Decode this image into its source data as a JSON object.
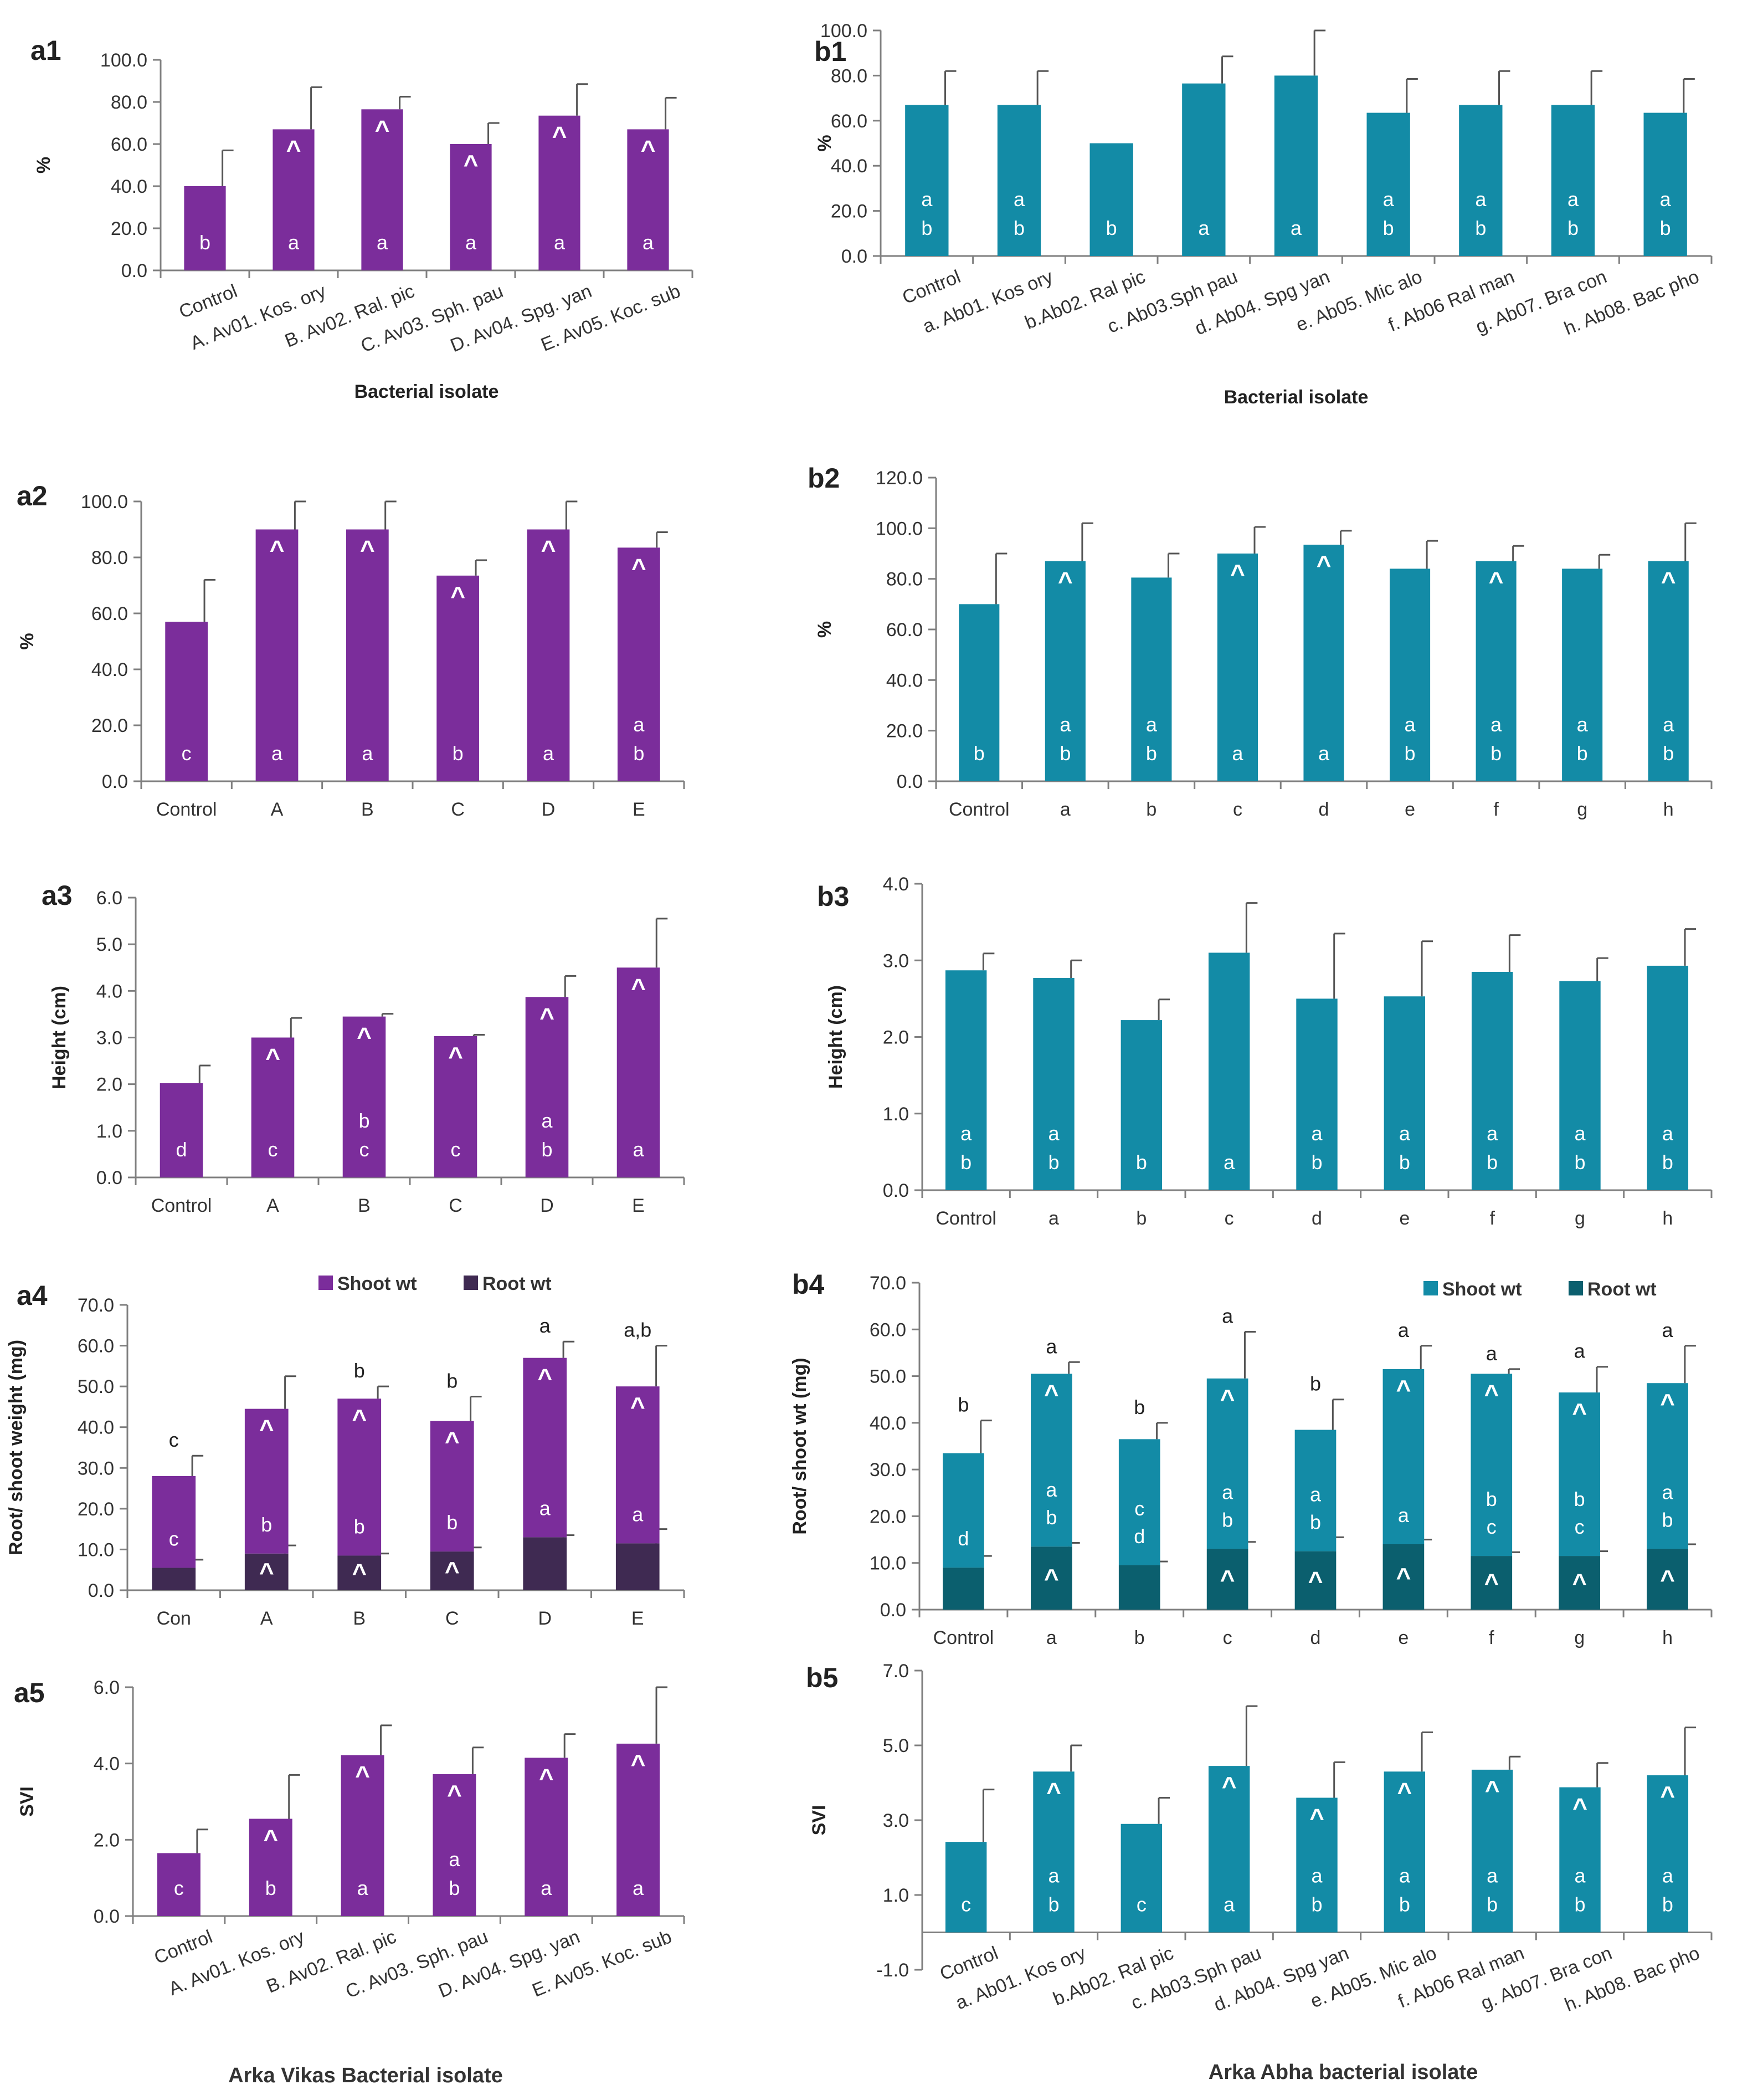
{
  "colors": {
    "purple": "#7b2d9b",
    "teal": "#138ba6",
    "dark_purple": "#3f2a52",
    "dark_teal": "#0b5f6e",
    "axis": "#7f7f7f",
    "text": "#333333"
  },
  "page_labels": {
    "left_bottom": "Arka Vikas Bacterial isolate",
    "right_bottom": "Arka Abha bacterial isolate"
  },
  "chart_data": [
    {
      "id": "a1",
      "type": "bar",
      "panel_label": "a1",
      "ylabel": "%",
      "xlabel": "Bacterial isolate",
      "ylim": [
        0,
        100
      ],
      "yticks": [
        0,
        20,
        40,
        60,
        80,
        100
      ],
      "tick_decimals": 1,
      "categories": [
        "Control",
        "A. Av01. Kos. ory",
        "B. Av02. Ral. pic",
        "C. Av03. Sph. pau",
        "D. Av04. Spg. yan",
        "E. Av05. Koc. sub"
      ],
      "rotate_x": true,
      "series": [
        {
          "name": "",
          "color": "purple",
          "values": [
            40,
            67,
            76.5,
            60,
            73.5,
            67
          ],
          "errors": [
            17,
            20,
            6,
            10,
            15,
            15
          ],
          "caret": [
            false,
            true,
            true,
            true,
            true,
            true
          ],
          "letters": [
            [
              "b"
            ],
            [
              "a"
            ],
            [
              "a"
            ],
            [
              "a"
            ],
            [
              "a"
            ],
            [
              "a"
            ]
          ]
        }
      ]
    },
    {
      "id": "b1",
      "type": "bar",
      "panel_label": "b1",
      "ylabel": "%",
      "xlabel": "Bacterial isolate",
      "ylim": [
        0,
        100
      ],
      "yticks": [
        0,
        20,
        40,
        60,
        80,
        100
      ],
      "tick_decimals": 1,
      "categories": [
        "Control",
        "a. Ab01. Kos ory",
        "b.Ab02. Ral pic",
        "c. Ab03.Sph pau",
        "d. Ab04. Spg yan",
        "e. Ab05. Mic alo",
        "f. Ab06 Ral man",
        "g. Ab07. Bra con",
        "h. Ab08. Bac pho"
      ],
      "rotate_x": true,
      "series": [
        {
          "name": "",
          "color": "teal",
          "values": [
            67,
            67,
            50,
            76.5,
            80,
            63.5,
            67,
            67,
            63.5
          ],
          "errors": [
            15,
            15,
            0,
            12,
            20,
            15,
            15,
            15,
            15
          ],
          "caret": [
            false,
            false,
            false,
            false,
            false,
            false,
            false,
            false,
            false
          ],
          "letters": [
            [
              "a",
              "b"
            ],
            [
              "a",
              "b"
            ],
            [
              "b"
            ],
            [
              "a"
            ],
            [
              "a"
            ],
            [
              "a",
              "b"
            ],
            [
              "a",
              "b"
            ],
            [
              "a",
              "b"
            ],
            [
              "a",
              "b"
            ]
          ]
        }
      ]
    },
    {
      "id": "a2",
      "type": "bar",
      "panel_label": "a2",
      "ylabel": "%",
      "xlabel": "",
      "ylim": [
        0,
        100
      ],
      "yticks": [
        0,
        20,
        40,
        60,
        80,
        100
      ],
      "tick_decimals": 1,
      "categories": [
        "Control",
        "A",
        "B",
        "C",
        "D",
        "E"
      ],
      "rotate_x": false,
      "series": [
        {
          "name": "",
          "color": "purple",
          "values": [
            57,
            90,
            90,
            73.5,
            90,
            83.5
          ],
          "errors": [
            15,
            10,
            10,
            5.5,
            10,
            5.5
          ],
          "caret": [
            false,
            true,
            true,
            true,
            true,
            true
          ],
          "letters": [
            [
              "c"
            ],
            [
              "a"
            ],
            [
              "a"
            ],
            [
              "b"
            ],
            [
              "a"
            ],
            [
              "a",
              "b"
            ]
          ]
        }
      ]
    },
    {
      "id": "b2",
      "type": "bar",
      "panel_label": "b2",
      "ylabel": "%",
      "xlabel": "",
      "ylim": [
        0,
        120
      ],
      "yticks": [
        0,
        20,
        40,
        60,
        80,
        100,
        120
      ],
      "tick_decimals": 1,
      "categories": [
        "Control",
        "a",
        "b",
        "c",
        "d",
        "e",
        "f",
        "g",
        "h"
      ],
      "rotate_x": false,
      "series": [
        {
          "name": "",
          "color": "teal",
          "values": [
            70,
            87,
            80.5,
            90,
            93.5,
            84,
            87,
            84,
            87
          ],
          "errors": [
            20,
            15,
            9.5,
            10.5,
            5.5,
            11,
            6,
            5.5,
            15
          ],
          "caret": [
            false,
            true,
            false,
            true,
            true,
            false,
            true,
            false,
            true
          ],
          "letters": [
            [
              "b"
            ],
            [
              "a",
              "b"
            ],
            [
              "a",
              "b"
            ],
            [
              "a"
            ],
            [
              "a"
            ],
            [
              "a",
              "b"
            ],
            [
              "a",
              "b"
            ],
            [
              "a",
              "b"
            ],
            [
              "a",
              "b"
            ]
          ]
        }
      ]
    },
    {
      "id": "a3",
      "type": "bar",
      "panel_label": "a3",
      "ylabel": "Height (cm)",
      "xlabel": "",
      "ylim": [
        0,
        6
      ],
      "yticks": [
        0,
        1,
        2,
        3,
        4,
        5,
        6
      ],
      "tick_decimals": 1,
      "categories": [
        "Control",
        "A",
        "B",
        "C",
        "D",
        "E"
      ],
      "rotate_x": false,
      "series": [
        {
          "name": "",
          "color": "purple",
          "values": [
            2.02,
            3,
            3.45,
            3.03,
            3.87,
            4.5
          ],
          "errors": [
            0.38,
            0.42,
            0.06,
            0.03,
            0.45,
            1.05
          ],
          "caret": [
            false,
            true,
            true,
            true,
            true,
            true
          ],
          "letters": [
            [
              "d"
            ],
            [
              "c"
            ],
            [
              "b",
              "c"
            ],
            [
              "c"
            ],
            [
              "a",
              "b"
            ],
            [
              "a"
            ]
          ]
        }
      ]
    },
    {
      "id": "b3",
      "type": "bar",
      "panel_label": "b3",
      "ylabel": "Height (cm)",
      "xlabel": "",
      "ylim": [
        0,
        4
      ],
      "yticks": [
        0,
        1,
        2,
        3,
        4
      ],
      "tick_decimals": 1,
      "categories": [
        "Control",
        "a",
        "b",
        "c",
        "d",
        "e",
        "f",
        "g",
        "h"
      ],
      "rotate_x": false,
      "series": [
        {
          "name": "",
          "color": "teal",
          "values": [
            2.87,
            2.77,
            2.22,
            3.1,
            2.5,
            2.53,
            2.85,
            2.73,
            2.93
          ],
          "errors": [
            0.22,
            0.23,
            0.27,
            0.65,
            0.85,
            0.72,
            0.48,
            0.3,
            0.48
          ],
          "caret": [
            false,
            false,
            false,
            false,
            false,
            false,
            false,
            false,
            false
          ],
          "letters": [
            [
              "a",
              "b"
            ],
            [
              "a",
              "b"
            ],
            [
              "b"
            ],
            [
              "a"
            ],
            [
              "a",
              "b"
            ],
            [
              "a",
              "b"
            ],
            [
              "a",
              "b"
            ],
            [
              "a",
              "b"
            ],
            [
              "a",
              "b"
            ]
          ]
        }
      ]
    },
    {
      "id": "a4",
      "type": "stacked-bar",
      "panel_label": "a4",
      "ylabel": "Root/ shoot weight (mg)",
      "xlabel": "",
      "ylim": [
        0,
        70
      ],
      "yticks": [
        0,
        10,
        20,
        30,
        40,
        50,
        60,
        70
      ],
      "tick_decimals": 1,
      "categories": [
        "Con",
        "A",
        "B",
        "C",
        "D",
        "E"
      ],
      "rotate_x": false,
      "legend": [
        "Shoot wt",
        "Root wt"
      ],
      "series": [
        {
          "name": "Root wt",
          "color": "dark_purple",
          "values": [
            5.5,
            9,
            8.5,
            9.5,
            13,
            11.5
          ],
          "errors": [
            2,
            2,
            0.5,
            1,
            0.5,
            3.5
          ],
          "caret": [
            false,
            true,
            true,
            true,
            false,
            false
          ],
          "letters": [
            [],
            [],
            [],
            [],
            [],
            []
          ]
        },
        {
          "name": "Shoot wt",
          "color": "purple",
          "values": [
            28,
            44.5,
            47,
            41.5,
            57,
            50
          ],
          "errors": [
            5,
            8,
            3,
            6,
            4,
            10
          ],
          "caret": [
            false,
            true,
            true,
            true,
            true,
            true
          ],
          "letters": [
            [
              "c"
            ],
            [
              "b"
            ],
            [
              "b"
            ],
            [
              "b"
            ],
            [
              "a"
            ],
            [
              "a"
            ]
          ],
          "top_letters": [
            "c",
            "",
            "b",
            "b",
            "a",
            "a,b"
          ]
        }
      ]
    },
    {
      "id": "b4",
      "type": "stacked-bar",
      "panel_label": "b4",
      "ylabel": "Root/ shoot wt (mg)",
      "xlabel": "",
      "ylim": [
        0,
        70
      ],
      "yticks": [
        0,
        10,
        20,
        30,
        40,
        50,
        60,
        70
      ],
      "tick_decimals": 1,
      "categories": [
        "Control",
        "a",
        "b",
        "c",
        "d",
        "e",
        "f",
        "g",
        "h"
      ],
      "rotate_x": false,
      "legend": [
        "Shoot wt",
        "Root wt"
      ],
      "series": [
        {
          "name": "Root wt",
          "color": "dark_teal",
          "values": [
            9,
            13.5,
            9.5,
            13,
            12.5,
            14,
            11.5,
            11.5,
            13
          ],
          "errors": [
            2.5,
            0.8,
            0.8,
            1.5,
            3,
            1,
            0.8,
            1,
            1
          ],
          "caret": [
            false,
            true,
            false,
            true,
            true,
            true,
            true,
            true,
            true
          ],
          "letters": [
            [],
            [],
            [],
            [],
            [],
            [],
            [],
            [],
            []
          ]
        },
        {
          "name": "Shoot wt",
          "color": "teal",
          "values": [
            33.5,
            50.5,
            36.5,
            49.5,
            38.5,
            51.5,
            50.5,
            46.5,
            48.5
          ],
          "errors": [
            7,
            2.5,
            3.5,
            10,
            6.5,
            5,
            1,
            5.5,
            8
          ],
          "caret": [
            false,
            true,
            false,
            true,
            false,
            true,
            true,
            true,
            true
          ],
          "letters": [
            [
              "d"
            ],
            [
              "a",
              "b"
            ],
            [
              "c",
              "d"
            ],
            [
              "a",
              "b"
            ],
            [
              "a",
              "b"
            ],
            [
              "a"
            ],
            [
              "b",
              "c"
            ],
            [
              "b",
              "c"
            ],
            [
              "a",
              "b"
            ]
          ],
          "top_letters": [
            "b",
            "a",
            "b",
            "a",
            "b",
            "a",
            "a",
            "a",
            "a"
          ]
        }
      ]
    },
    {
      "id": "a5",
      "type": "bar",
      "panel_label": "a5",
      "ylabel": "SVI",
      "xlabel": "",
      "ylim": [
        0,
        6
      ],
      "yticks": [
        0,
        2,
        4,
        6
      ],
      "tick_decimals": 1,
      "categories": [
        "Control",
        "A. Av01. Kos. ory",
        "B. Av02. Ral. pic",
        "C. Av03. Sph. pau",
        "D. Av04. Spg. yan",
        "E. Av05. Koc. sub"
      ],
      "rotate_x": true,
      "series": [
        {
          "name": "",
          "color": "purple",
          "values": [
            1.65,
            2.55,
            4.22,
            3.72,
            4.15,
            4.52
          ],
          "errors": [
            0.62,
            1.15,
            0.78,
            0.7,
            0.62,
            1.48
          ],
          "caret": [
            false,
            true,
            true,
            true,
            true,
            true
          ],
          "letters": [
            [
              "c"
            ],
            [
              "b"
            ],
            [
              "a"
            ],
            [
              "a",
              "b"
            ],
            [
              "a"
            ],
            [
              "a"
            ]
          ]
        }
      ]
    },
    {
      "id": "b5",
      "type": "bar",
      "panel_label": "b5",
      "ylabel": "SVI",
      "xlabel": "",
      "ylim": [
        -1,
        7
      ],
      "yticks": [
        -1,
        1,
        3,
        5,
        7
      ],
      "tick_decimals": 1,
      "baseline": 0,
      "categories": [
        "Control",
        "a. Ab01. Kos ory",
        "b.Ab02. Ral pic",
        "c. Ab03.Sph pau",
        "d. Ab04. Spg yan",
        "e. Ab05. Mic alo",
        "f. Ab06 Ral man",
        "g. Ab07. Bra con",
        "h. Ab08. Bac pho"
      ],
      "rotate_x": true,
      "series": [
        {
          "name": "",
          "color": "teal",
          "values": [
            2.42,
            4.3,
            2.9,
            4.45,
            3.6,
            4.3,
            4.35,
            3.88,
            4.2
          ],
          "errors": [
            1.4,
            0.7,
            0.7,
            1.6,
            0.95,
            1.05,
            0.35,
            0.65,
            1.28
          ],
          "caret": [
            false,
            true,
            false,
            true,
            true,
            true,
            true,
            true,
            true
          ],
          "letters": [
            [
              "c"
            ],
            [
              "a",
              "b"
            ],
            [
              "c"
            ],
            [
              "a"
            ],
            [
              "a",
              "b"
            ],
            [
              "a",
              "b"
            ],
            [
              "a",
              "b"
            ],
            [
              "a",
              "b"
            ],
            [
              "a",
              "b"
            ]
          ]
        }
      ]
    }
  ]
}
